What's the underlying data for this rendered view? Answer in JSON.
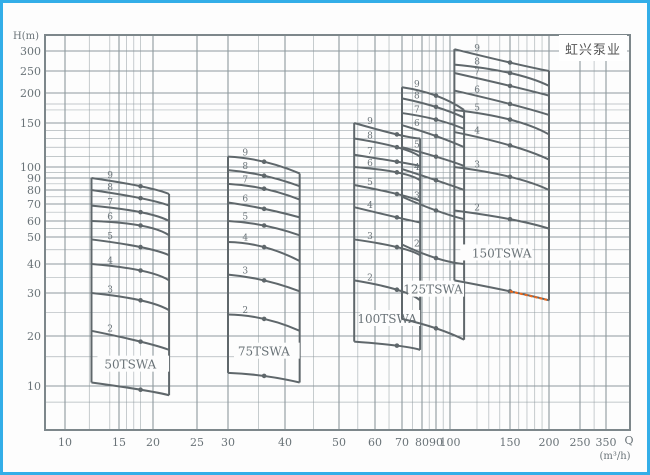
{
  "brand": "虹兴泵业",
  "chart_data": {
    "type": "line",
    "title": "",
    "ylabel": "H(m)",
    "xlabel": "Q",
    "xunit": "(m³/h)",
    "xscale": "log",
    "yscale": "log",
    "grid": true,
    "xticks": [
      "10",
      "15",
      "20",
      "25",
      "30",
      "40",
      "50",
      "60",
      "70",
      "80",
      "90",
      "100",
      "150",
      "200",
      "250",
      "350"
    ],
    "yticks": [
      "10",
      "20",
      "30",
      "40",
      "50",
      "60",
      "70",
      "80",
      "90",
      "100",
      "150",
      "200",
      "250",
      "300"
    ],
    "colors": {
      "grid": "#8e999e",
      "curve": "#5f676b",
      "highlight": "#f06a1c"
    },
    "series": [
      {
        "name": "50TSWA",
        "q": [
          12.2,
          18,
          21.7
        ],
        "stages": [
          {
            "label": "",
            "h": [
              10.5,
              9.5,
              8.8
            ]
          },
          {
            "label": "2",
            "h": [
              21,
              18.5,
              16.5
            ]
          },
          {
            "label": "3",
            "h": [
              30,
              28,
              25.5
            ]
          },
          {
            "label": "4",
            "h": [
              40,
              37.5,
              34
            ]
          },
          {
            "label": "5",
            "h": [
              49,
              46,
              43
            ]
          },
          {
            "label": "6",
            "h": [
              60,
              57,
              51
            ]
          },
          {
            "label": "7",
            "h": [
              69,
              65,
              60
            ]
          },
          {
            "label": "8",
            "h": [
              80,
              74,
              69
            ]
          },
          {
            "label": "9",
            "h": [
              90,
              83,
              77
            ]
          }
        ]
      },
      {
        "name": "75TSWA",
        "q": [
          30,
          36,
          42.5
        ],
        "stages": [
          {
            "label": "",
            "h": [
              12,
              11.5,
              10.5
            ]
          },
          {
            "label": "2",
            "h": [
              24.5,
              23.5,
              21
            ]
          },
          {
            "label": "3",
            "h": [
              36,
              34,
              30.5
            ]
          },
          {
            "label": "4",
            "h": [
              48,
              46,
              41
            ]
          },
          {
            "label": "5",
            "h": [
              60,
              57,
              51
            ]
          },
          {
            "label": "6",
            "h": [
              71,
              67,
              62
            ]
          },
          {
            "label": "7",
            "h": [
              85,
              81,
              73
            ]
          },
          {
            "label": "8",
            "h": [
              97,
              92,
              83
            ]
          },
          {
            "label": "9",
            "h": [
              110,
              105,
              94
            ]
          }
        ]
      },
      {
        "name": "100TSWA",
        "q": [
          54,
          68,
          79
        ],
        "stages": [
          {
            "label": "",
            "h": [
              18.5,
              17.5,
              16.5
            ]
          },
          {
            "label": "2",
            "h": [
              34,
              31,
              28
            ]
          },
          {
            "label": "3",
            "h": [
              49,
              46,
              43
            ]
          },
          {
            "label": "4",
            "h": [
              68,
              62,
              59
            ]
          },
          {
            "label": "5",
            "h": [
              84,
              77,
              72
            ]
          },
          {
            "label": "6",
            "h": [
              100,
              95,
              88
            ]
          },
          {
            "label": "7",
            "h": [
              112,
              105,
              101
            ]
          },
          {
            "label": "8",
            "h": [
              130,
              120,
              110
            ]
          },
          {
            "label": "9",
            "h": [
              150,
              135,
              130
            ]
          }
        ]
      },
      {
        "name": "125TSWA",
        "q": [
          70,
          90,
          110
        ],
        "stages": [
          {
            "label": "",
            "h": [
              23.5,
              21.5,
              19
            ]
          },
          {
            "label": "2",
            "h": [
              47,
              42,
              40
            ]
          },
          {
            "label": "3",
            "h": [
              75,
              66,
              61
            ]
          },
          {
            "label": "4",
            "h": [
              98,
              88,
              80
            ]
          },
          {
            "label": "5",
            "h": [
              120,
              110,
              101
            ]
          },
          {
            "label": "6",
            "h": [
              147,
              133,
              120
            ]
          },
          {
            "label": "7",
            "h": [
              165,
              155,
              142
            ]
          },
          {
            "label": "8",
            "h": [
              190,
              175,
              158
            ]
          },
          {
            "label": "9",
            "h": [
              212,
              195,
              170
            ]
          }
        ]
      },
      {
        "name": "150TSWA",
        "q": [
          103,
          150,
          200
        ],
        "stages": [
          {
            "label": "",
            "h": [
              34,
              30.5,
              28
            ]
          },
          {
            "label": "2",
            "h": [
              66,
              61,
              55
            ]
          },
          {
            "label": "3",
            "h": [
              100,
              91,
              80
            ]
          },
          {
            "label": "4",
            "h": [
              138,
              122,
              107
            ]
          },
          {
            "label": "5",
            "h": [
              170,
              155,
              135
            ]
          },
          {
            "label": "6",
            "h": [
              205,
              180,
              162
            ]
          },
          {
            "label": "7",
            "h": [
              245,
              215,
              195
            ]
          },
          {
            "label": "8",
            "h": [
              265,
              245,
              215
            ]
          },
          {
            "label": "9",
            "h": [
              305,
              270,
              250
            ]
          }
        ]
      }
    ]
  }
}
